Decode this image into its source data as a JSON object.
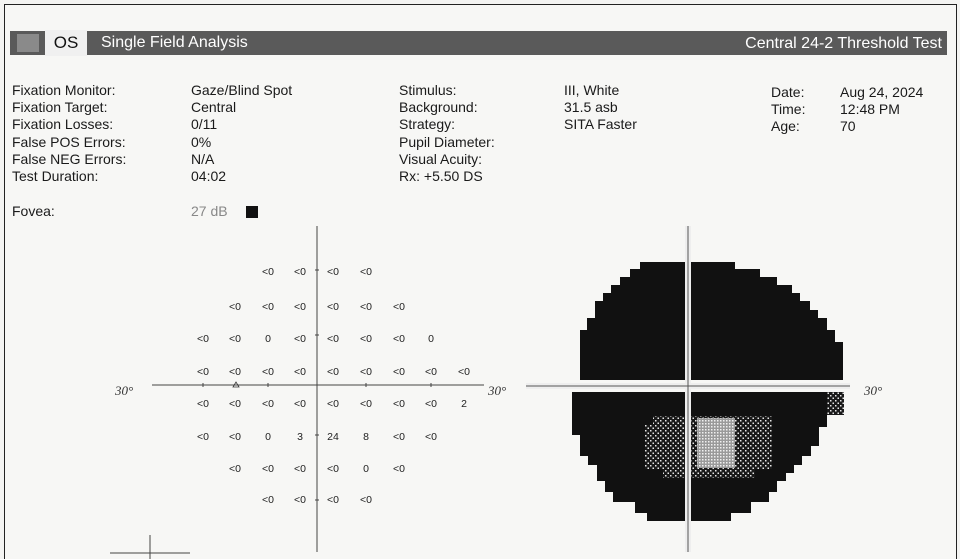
{
  "header": {
    "eye": "OS",
    "title": "Single Field Analysis",
    "test": "Central 24-2 Threshold Test"
  },
  "info_left": {
    "labels": [
      "Fixation Monitor:",
      "Fixation Target:",
      "Fixation Losses:",
      "False POS Errors:",
      "False NEG Errors:",
      "Test Duration:"
    ],
    "values": [
      "Gaze/Blind Spot",
      "Central",
      "0/11",
      "0%",
      "N/A",
      "04:02"
    ]
  },
  "info_mid": {
    "labels": [
      "Stimulus:",
      "Background:",
      "Strategy:",
      "Pupil Diameter:",
      "Visual Acuity:",
      "Rx:  +5.50 DS"
    ],
    "values": [
      "III, White",
      "31.5 asb",
      "SITA Faster"
    ]
  },
  "info_right": {
    "labels": [
      "Date:",
      "Time:",
      "Age:"
    ],
    "values": [
      "Aug 24, 2024",
      "12:48 PM",
      "70"
    ]
  },
  "fovea": {
    "label": "Fovea:",
    "value": "27 dB"
  },
  "axis_label": "30°",
  "threshold_grid": {
    "rows": [
      [
        "<0",
        "<0",
        "<0",
        "<0"
      ],
      [
        "<0",
        "<0",
        "<0",
        "<0",
        "<0",
        "<0"
      ],
      [
        "<0",
        "<0",
        "0",
        "<0",
        "<0",
        "<0",
        "<0",
        "0"
      ],
      [
        "<0",
        "<0",
        "<0",
        "<0",
        "<0",
        "<0",
        "<0",
        "<0",
        "<0"
      ],
      [
        "<0",
        "<0",
        "<0",
        "<0",
        "<0",
        "<0",
        "<0",
        "<0",
        "2"
      ],
      [
        "<0",
        "<0",
        "0",
        "3",
        "24",
        "8",
        "<0",
        "<0"
      ],
      [
        "<0",
        "<0",
        "<0",
        "<0",
        "0",
        "<0"
      ],
      [
        "<0",
        "<0",
        "<0",
        "<0"
      ]
    ]
  }
}
